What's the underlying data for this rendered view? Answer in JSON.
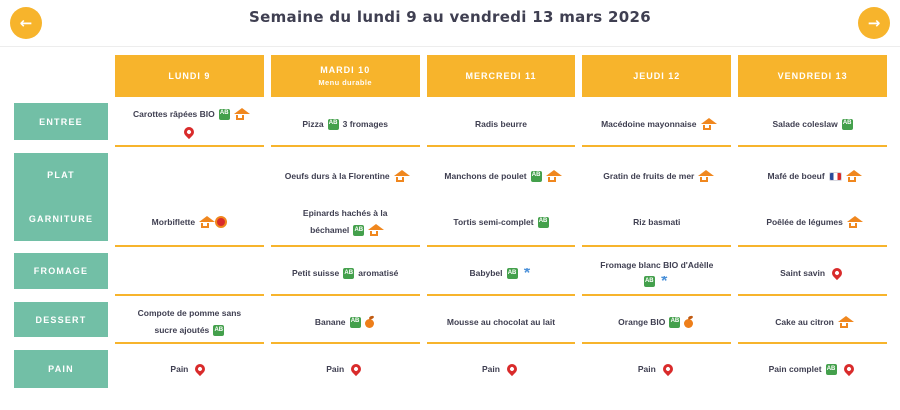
{
  "title": "Semaine du lundi 9 au vendredi 13 mars 2026",
  "nav": {
    "prev": "←",
    "next": "→"
  },
  "row_labels": {
    "entree": "ENTREE",
    "plat": "PLAT",
    "garniture": "GARNITURE",
    "fromage": "FROMAGE",
    "dessert": "DESSERT",
    "pain": "PAIN"
  },
  "colors": {
    "accent_yellow": "#F7B42C",
    "teal": "#72BFA6",
    "text": "#3F3F51",
    "bio_green": "#44A04C",
    "home_orange": "#F0871E",
    "pin_red": "#D92B2B",
    "milk_blue": "#4A90D9"
  },
  "icon_legend": {
    "bio": "AB-organic-label",
    "home": "fait-maison-house",
    "pin": "local-product-pin",
    "aop": "aop-badge",
    "beef": "french-beef-label",
    "milk": "blue-dairy-label",
    "fruit": "seasonal-fruit"
  },
  "icon_glyphs": {
    "bio": "AB",
    "milk": "*"
  },
  "days": [
    {
      "label": "LUNDI 9",
      "sublabel": "",
      "entree": [
        {
          "t": "Carottes râpées BIO"
        },
        {
          "i": "bio"
        },
        {
          "i": "home"
        },
        {
          "b": true
        },
        {
          "i": "pin"
        }
      ],
      "plat": [],
      "garniture": [
        {
          "t": "Morbiflette"
        },
        {
          "i": "home"
        },
        {
          "i": "aop"
        }
      ],
      "fromage": [],
      "dessert": [
        {
          "t": "Compote de pomme sans"
        },
        {
          "b": true
        },
        {
          "t": "sucre ajoutés"
        },
        {
          "i": "bio"
        }
      ],
      "pain": [
        {
          "t": "Pain"
        },
        {
          "i": "pin"
        }
      ]
    },
    {
      "label": "MARDI 10",
      "sublabel": "Menu durable",
      "entree": [
        {
          "t": "Pizza"
        },
        {
          "i": "bio"
        },
        {
          "t": "3 fromages"
        }
      ],
      "plat": [
        {
          "t": "Oeufs durs à la Florentine"
        },
        {
          "i": "home"
        }
      ],
      "garniture": [
        {
          "t": "Epinards hachés à la"
        },
        {
          "b": true
        },
        {
          "t": "béchamel"
        },
        {
          "i": "bio"
        },
        {
          "i": "home"
        }
      ],
      "fromage": [
        {
          "t": "Petit suisse"
        },
        {
          "i": "bio"
        },
        {
          "t": "aromatisé"
        }
      ],
      "dessert": [
        {
          "t": "Banane"
        },
        {
          "i": "bio"
        },
        {
          "i": "fruit"
        }
      ],
      "pain": [
        {
          "t": "Pain"
        },
        {
          "i": "pin"
        }
      ]
    },
    {
      "label": "MERCREDI 11",
      "sublabel": "",
      "entree": [
        {
          "t": "Radis beurre"
        }
      ],
      "plat": [
        {
          "t": "Manchons de poulet"
        },
        {
          "i": "bio"
        },
        {
          "i": "home"
        }
      ],
      "garniture": [
        {
          "t": "Tortis semi-complet"
        },
        {
          "i": "bio"
        }
      ],
      "fromage": [
        {
          "t": "Babybel"
        },
        {
          "i": "bio"
        },
        {
          "i": "milk"
        }
      ],
      "dessert": [
        {
          "t": "Mousse au chocolat au lait"
        }
      ],
      "pain": [
        {
          "t": "Pain"
        },
        {
          "i": "pin"
        }
      ]
    },
    {
      "label": "JEUDI 12",
      "sublabel": "",
      "entree": [
        {
          "t": "Macédoine mayonnaise"
        },
        {
          "i": "home"
        }
      ],
      "plat": [
        {
          "t": "Gratin de fruits de mer"
        },
        {
          "i": "home"
        }
      ],
      "garniture": [
        {
          "t": "Riz basmati"
        }
      ],
      "fromage": [
        {
          "t": "Fromage blanc BIO d'Adèlle"
        },
        {
          "b": true
        },
        {
          "i": "bio"
        },
        {
          "i": "milk"
        }
      ],
      "dessert": [
        {
          "t": "Orange BIO"
        },
        {
          "i": "bio"
        },
        {
          "i": "fruit"
        }
      ],
      "pain": [
        {
          "t": "Pain"
        },
        {
          "i": "pin"
        }
      ]
    },
    {
      "label": "VENDREDI 13",
      "sublabel": "",
      "entree": [
        {
          "t": "Salade coleslaw"
        },
        {
          "i": "bio"
        }
      ],
      "plat": [
        {
          "t": "Mafé de boeuf"
        },
        {
          "i": "beef"
        },
        {
          "i": "home"
        }
      ],
      "garniture": [
        {
          "t": "Poêlée de légumes"
        },
        {
          "i": "home"
        }
      ],
      "fromage": [
        {
          "t": "Saint savin"
        },
        {
          "i": "pin"
        }
      ],
      "dessert": [
        {
          "t": "Cake au citron"
        },
        {
          "i": "home"
        }
      ],
      "pain": [
        {
          "t": "Pain complet"
        },
        {
          "i": "bio"
        },
        {
          "i": "pin"
        }
      ]
    }
  ]
}
